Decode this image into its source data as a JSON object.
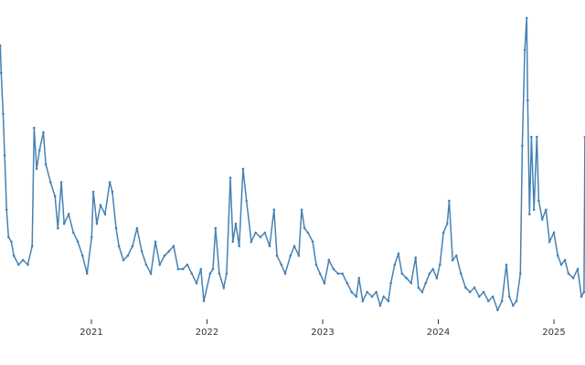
{
  "chart_data": {
    "type": "line",
    "title": "",
    "xlabel": "",
    "ylabel": "",
    "x_axis": {
      "type": "date",
      "tick_labels": [
        "2021",
        "2022",
        "2023",
        "2024",
        "2025"
      ],
      "range": [
        "2020-03-19",
        "2025-04-09"
      ]
    },
    "y_axis": {
      "visible": false,
      "ylim": [
        10,
        60
      ]
    },
    "grid": false,
    "legend": "none",
    "markers": true,
    "color": "#4682b4",
    "series": [
      {
        "x": [
          "2020-03-19",
          "2020-03-22",
          "2020-03-28",
          "2020-04-02",
          "2020-04-08",
          "2020-04-14",
          "2020-04-23",
          "2020-05-01",
          "2020-05-16",
          "2020-05-30",
          "2020-06-14",
          "2020-06-28",
          "2020-07-04",
          "2020-07-12",
          "2020-07-21",
          "2020-08-02",
          "2020-08-10",
          "2020-08-25",
          "2020-09-08",
          "2020-09-17",
          "2020-09-28",
          "2020-10-07",
          "2020-10-21",
          "2020-11-05",
          "2020-11-19",
          "2020-12-04",
          "2020-12-18",
          "2021-01-02",
          "2021-01-07",
          "2021-01-18",
          "2021-01-30",
          "2021-02-13",
          "2021-02-28",
          "2021-03-08",
          "2021-03-20",
          "2021-03-29",
          "2021-04-12",
          "2021-04-26",
          "2021-05-11",
          "2021-05-25",
          "2021-06-09",
          "2021-06-23",
          "2021-07-08",
          "2021-07-22",
          "2021-08-05",
          "2021-08-20",
          "2021-09-03",
          "2021-09-18",
          "2021-10-02",
          "2021-10-17",
          "2021-10-31",
          "2021-11-14",
          "2021-11-29",
          "2021-12-13",
          "2021-12-22",
          "2022-01-11",
          "2022-01-20",
          "2022-01-28",
          "2022-02-09",
          "2022-02-23",
          "2022-03-04",
          "2022-03-16",
          "2022-03-24",
          "2022-04-02",
          "2022-04-13",
          "2022-04-25",
          "2022-05-06",
          "2022-05-21",
          "2022-06-04",
          "2022-06-19",
          "2022-07-03",
          "2022-07-18",
          "2022-08-01",
          "2022-08-10",
          "2022-08-24",
          "2022-09-05",
          "2022-09-22",
          "2022-10-04",
          "2022-10-18",
          "2022-10-27",
          "2022-11-05",
          "2022-11-16",
          "2022-12-01",
          "2022-12-12",
          "2022-12-24",
          "2023-01-07",
          "2023-01-21",
          "2023-02-05",
          "2023-02-19",
          "2023-03-05",
          "2023-03-20",
          "2023-04-03",
          "2023-04-18",
          "2023-04-26",
          "2023-05-08",
          "2023-05-22",
          "2023-06-06",
          "2023-06-20",
          "2023-07-02",
          "2023-07-13",
          "2023-07-28",
          "2023-08-05",
          "2023-08-17",
          "2023-08-29",
          "2023-09-09",
          "2023-09-23",
          "2023-10-08",
          "2023-10-22",
          "2023-10-31",
          "2023-11-12",
          "2023-11-23",
          "2023-12-05",
          "2023-12-16",
          "2023-12-28",
          "2024-01-07",
          "2024-01-18",
          "2024-01-30",
          "2024-02-05",
          "2024-02-16",
          "2024-02-28",
          "2024-03-13",
          "2024-03-28",
          "2024-04-11",
          "2024-04-25",
          "2024-05-10",
          "2024-05-24",
          "2024-06-08",
          "2024-06-22",
          "2024-07-07",
          "2024-07-21",
          "2024-08-04",
          "2024-08-13",
          "2024-08-25",
          "2024-09-05",
          "2024-09-17",
          "2024-09-23",
          "2024-10-01",
          "2024-10-07",
          "2024-10-10",
          "2024-10-16",
          "2024-10-22",
          "2024-10-30",
          "2024-11-08",
          "2024-11-14",
          "2024-11-25",
          "2024-12-07",
          "2024-12-18",
          "2025-01-01",
          "2025-01-13",
          "2025-01-24",
          "2025-02-05",
          "2025-02-16",
          "2025-03-03",
          "2025-03-17",
          "2025-03-29",
          "2025-04-06",
          "2025-04-09"
        ],
        "y": [
          54.3,
          50.0,
          43.6,
          37.1,
          28.6,
          24.3,
          23.6,
          21.4,
          20.0,
          20.7,
          20.0,
          22.9,
          41.4,
          35.0,
          37.9,
          40.7,
          35.7,
          32.9,
          30.7,
          25.7,
          32.9,
          26.4,
          27.9,
          25.0,
          23.6,
          21.4,
          18.6,
          24.3,
          31.4,
          26.4,
          29.3,
          27.9,
          32.9,
          31.4,
          25.7,
          22.9,
          20.7,
          21.4,
          22.9,
          25.7,
          22.1,
          20.0,
          18.6,
          23.6,
          20.0,
          21.4,
          22.1,
          22.9,
          19.3,
          19.3,
          20.0,
          18.6,
          17.1,
          19.3,
          14.3,
          18.6,
          19.3,
          25.7,
          18.6,
          16.4,
          18.6,
          33.6,
          23.6,
          26.4,
          22.9,
          35.0,
          30.0,
          23.6,
          25.0,
          24.3,
          25.0,
          22.9,
          28.6,
          21.4,
          20.0,
          18.6,
          21.4,
          22.9,
          21.4,
          28.6,
          25.7,
          25.0,
          23.6,
          20.0,
          18.6,
          17.1,
          20.7,
          19.3,
          18.6,
          18.6,
          17.1,
          15.7,
          15.0,
          17.9,
          14.3,
          15.7,
          15.0,
          15.7,
          13.6,
          15.0,
          14.3,
          17.1,
          20.0,
          21.7,
          18.6,
          17.9,
          17.1,
          21.1,
          16.4,
          15.7,
          17.1,
          18.6,
          19.3,
          17.9,
          20.0,
          25.0,
          26.4,
          30.0,
          20.7,
          21.4,
          18.6,
          16.4,
          15.7,
          16.4,
          15.0,
          15.7,
          14.3,
          15.0,
          12.9,
          14.3,
          20.0,
          15.0,
          13.6,
          14.3,
          18.6,
          38.6,
          53.6,
          58.6,
          45.7,
          27.9,
          40.0,
          28.6,
          40.0,
          30.0,
          27.1,
          28.6,
          23.6,
          25.0,
          21.4,
          20.0,
          20.7,
          18.6,
          17.9,
          19.3,
          15.0,
          15.7,
          40.0
        ]
      }
    ]
  }
}
